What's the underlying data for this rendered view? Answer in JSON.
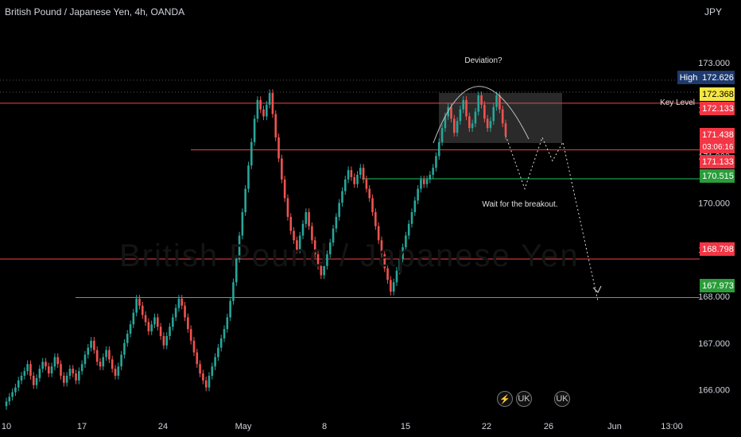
{
  "header": {
    "title": "British Pound / Japanese Yen, 4h, OANDA",
    "currency": "JPY"
  },
  "watermark": "British Pound / Japanese Yen",
  "annotations": {
    "deviation": "Deviation?",
    "key_level": "Key Level",
    "wait": "Wait for the breakout."
  },
  "price_labels": [
    {
      "tag": "High",
      "value": "172.626",
      "bg": "#1e3a6e",
      "fg": "#ffffff"
    },
    {
      "tag": "",
      "value": "172.368",
      "bg": "#f5e642",
      "fg": "#000000"
    },
    {
      "tag": "",
      "value": "172.133",
      "bg": "#f23645",
      "fg": "#ffffff"
    },
    {
      "tag": "",
      "value": "171.438",
      "bg": "#f23645",
      "fg": "#ffffff",
      "sub": "03:06:16"
    },
    {
      "tag": "",
      "value": "171.133",
      "bg": "#f23645",
      "fg": "#ffffff"
    },
    {
      "tag": "",
      "value": "170.515",
      "bg": "#2a9d3a",
      "fg": "#ffffff"
    },
    {
      "tag": "",
      "value": "168.798",
      "bg": "#f23645",
      "fg": "#ffffff"
    },
    {
      "tag": "",
      "value": "167.973",
      "bg": "#2a9d3a",
      "fg": "#ffffff"
    }
  ],
  "events": [
    "⚡",
    "UK",
    "UK"
  ],
  "colors": {
    "up": "#26a69a",
    "down": "#ef5350",
    "support": "#22c55e",
    "resistance": "#ef4444"
  },
  "chart_data": {
    "type": "candlestick",
    "y_ticks": [
      "173.000",
      "172.000",
      "171.000",
      "170.000",
      "169.000",
      "168.000",
      "167.000",
      "166.000"
    ],
    "x_ticks": [
      "10",
      "17",
      "24",
      "May",
      "8",
      "15",
      "22",
      "26",
      "Jun",
      "13:00"
    ],
    "ylim": [
      165.5,
      174.0
    ],
    "levels": [
      {
        "value": 172.133,
        "color": "resistance",
        "label": "Key Level"
      },
      {
        "value": 171.133,
        "color": "resistance"
      },
      {
        "value": 170.515,
        "color": "support"
      },
      {
        "value": 168.798,
        "color": "resistance"
      },
      {
        "value": 167.973,
        "color": "support"
      }
    ],
    "closes": [
      165.75,
      165.85,
      165.95,
      166.05,
      166.2,
      166.3,
      166.4,
      166.55,
      166.3,
      166.1,
      166.25,
      166.45,
      166.6,
      166.5,
      166.35,
      166.5,
      166.7,
      166.55,
      166.3,
      166.15,
      166.3,
      166.45,
      166.35,
      166.2,
      166.4,
      166.55,
      166.75,
      166.9,
      167.05,
      166.85,
      166.6,
      166.5,
      166.7,
      166.85,
      166.65,
      166.45,
      166.3,
      166.5,
      166.75,
      167.0,
      167.2,
      167.4,
      167.65,
      167.95,
      167.8,
      167.6,
      167.45,
      167.25,
      167.4,
      167.55,
      167.35,
      167.15,
      166.95,
      167.15,
      167.35,
      167.55,
      167.75,
      167.95,
      167.8,
      167.55,
      167.3,
      167.05,
      166.8,
      166.55,
      166.35,
      166.2,
      166.05,
      166.3,
      166.5,
      166.7,
      166.9,
      167.1,
      167.3,
      167.55,
      167.9,
      168.3,
      168.8,
      169.3,
      169.8,
      170.3,
      170.8,
      171.3,
      171.8,
      172.2,
      172.0,
      171.85,
      172.1,
      172.35,
      171.9,
      171.4,
      170.95,
      170.5,
      170.1,
      169.7,
      169.4,
      169.2,
      169.0,
      169.3,
      169.55,
      169.8,
      169.5,
      169.2,
      168.9,
      168.65,
      168.45,
      168.65,
      168.9,
      169.15,
      169.45,
      169.7,
      170.0,
      170.25,
      170.5,
      170.7,
      170.55,
      170.4,
      170.6,
      170.75,
      170.5,
      170.3,
      170.1,
      169.8,
      169.5,
      169.2,
      168.9,
      168.6,
      168.35,
      168.1,
      168.3,
      168.55,
      168.8,
      169.05,
      169.3,
      169.55,
      169.8,
      170.05,
      170.3,
      170.5,
      170.4,
      170.5,
      170.6,
      170.75,
      171.0,
      171.3,
      171.6,
      171.85,
      172.05,
      171.8,
      171.5,
      171.75,
      172.0,
      172.2,
      171.85,
      171.6,
      171.7,
      171.95,
      172.3,
      172.1,
      171.8,
      171.6,
      171.75,
      172.05,
      172.3,
      172.0,
      171.7,
      171.44
    ],
    "projection": [
      [
        171.44,
        170.3
      ],
      [
        170.3,
        171.4
      ],
      [
        171.4,
        170.9
      ],
      [
        170.9,
        171.3
      ],
      [
        171.3,
        167.9
      ]
    ]
  }
}
